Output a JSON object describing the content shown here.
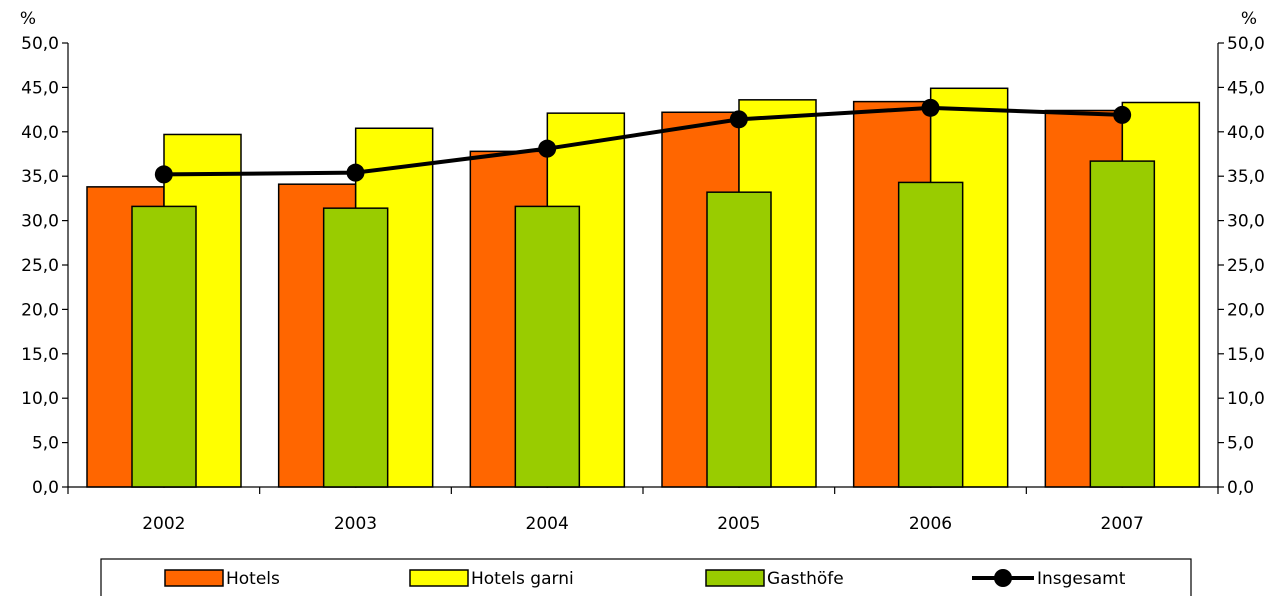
{
  "chart_data": {
    "type": "bar",
    "categories": [
      "2002",
      "2003",
      "2004",
      "2005",
      "2006",
      "2007"
    ],
    "series": [
      {
        "name": "Hotels",
        "type": "bar",
        "color": "#ff6600",
        "values": [
          33.8,
          34.1,
          37.8,
          42.2,
          43.4,
          42.4
        ]
      },
      {
        "name": "Hotels garni",
        "type": "bar",
        "color": "#ffff00",
        "values": [
          39.7,
          40.4,
          42.1,
          43.6,
          44.9,
          43.3
        ]
      },
      {
        "name": "Gasthöfe",
        "type": "bar",
        "color": "#99cc00",
        "values": [
          31.6,
          31.4,
          31.6,
          33.2,
          34.3,
          36.7
        ]
      },
      {
        "name": "Insgesamt",
        "type": "line",
        "color": "#000000",
        "values": [
          35.2,
          35.4,
          38.1,
          41.4,
          42.7,
          41.9
        ]
      }
    ],
    "ylabel_left": "%",
    "ylabel_right": "%",
    "ylim": [
      0,
      50
    ],
    "yticks": [
      "0,0",
      "5,0",
      "10,0",
      "15,0",
      "20,0",
      "25,0",
      "30,0",
      "35,0",
      "40,0",
      "45,0",
      "50,0"
    ],
    "grid": false,
    "legend_position": "bottom"
  }
}
